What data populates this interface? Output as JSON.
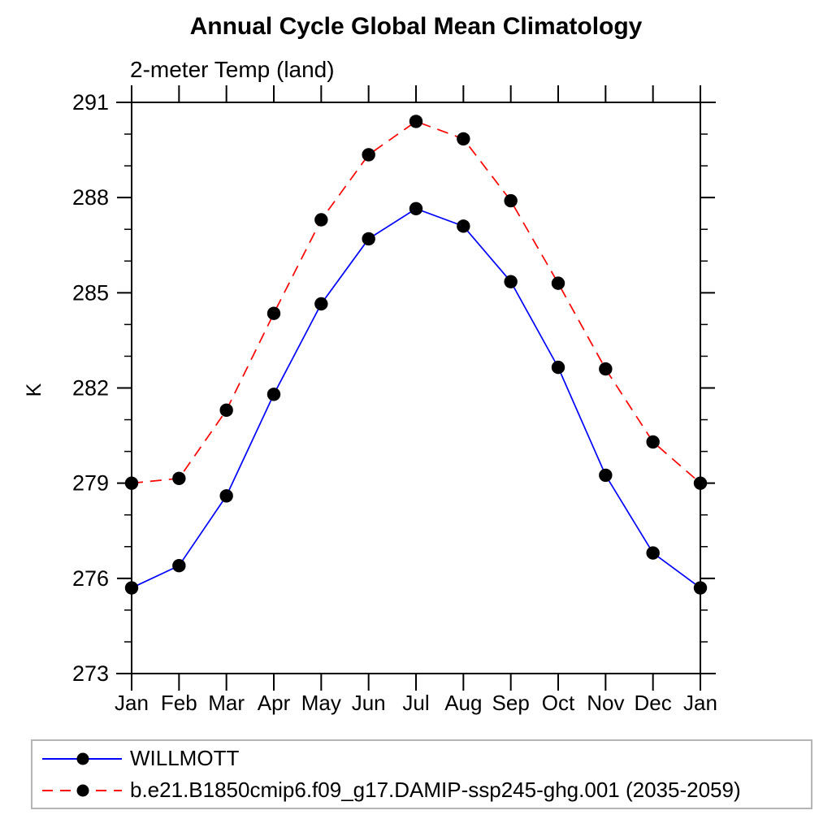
{
  "header": {
    "title": "Annual Cycle Global Mean Climatology",
    "subtitle": "2-meter Temp (land)"
  },
  "chart_data": {
    "type": "line",
    "title": "Annual Cycle Global Mean Climatology",
    "subtitle": "2-meter Temp (land)",
    "xlabel": "",
    "ylabel": "K",
    "categories": [
      "Jan",
      "Feb",
      "Mar",
      "Apr",
      "May",
      "Jun",
      "Jul",
      "Aug",
      "Sep",
      "Oct",
      "Nov",
      "Dec",
      "Jan"
    ],
    "ylim": [
      273,
      291
    ],
    "ytick_major": [
      273,
      276,
      279,
      282,
      285,
      288,
      291
    ],
    "ytick_minor_step": 1,
    "grid": false,
    "legend_position": "bottom-left-box",
    "axis_color": "#000000",
    "marker_color": "#000000",
    "series": [
      {
        "name": "WILLMOTT",
        "color": "#0000ff",
        "style": "solid",
        "marker": "circle",
        "values": [
          275.7,
          276.4,
          278.6,
          281.8,
          284.65,
          286.7,
          287.65,
          287.1,
          285.35,
          282.65,
          279.25,
          276.8,
          275.7
        ]
      },
      {
        "name": "b.e21.B1850cmip6.f09_g17.DAMIP-ssp245-ghg.001 (2035-2059)",
        "color": "#ff0000",
        "style": "dashed",
        "marker": "circle",
        "values": [
          279.0,
          279.15,
          281.3,
          284.35,
          287.3,
          289.35,
          290.4,
          289.85,
          287.9,
          285.3,
          282.6,
          280.3,
          279.0
        ]
      }
    ]
  }
}
